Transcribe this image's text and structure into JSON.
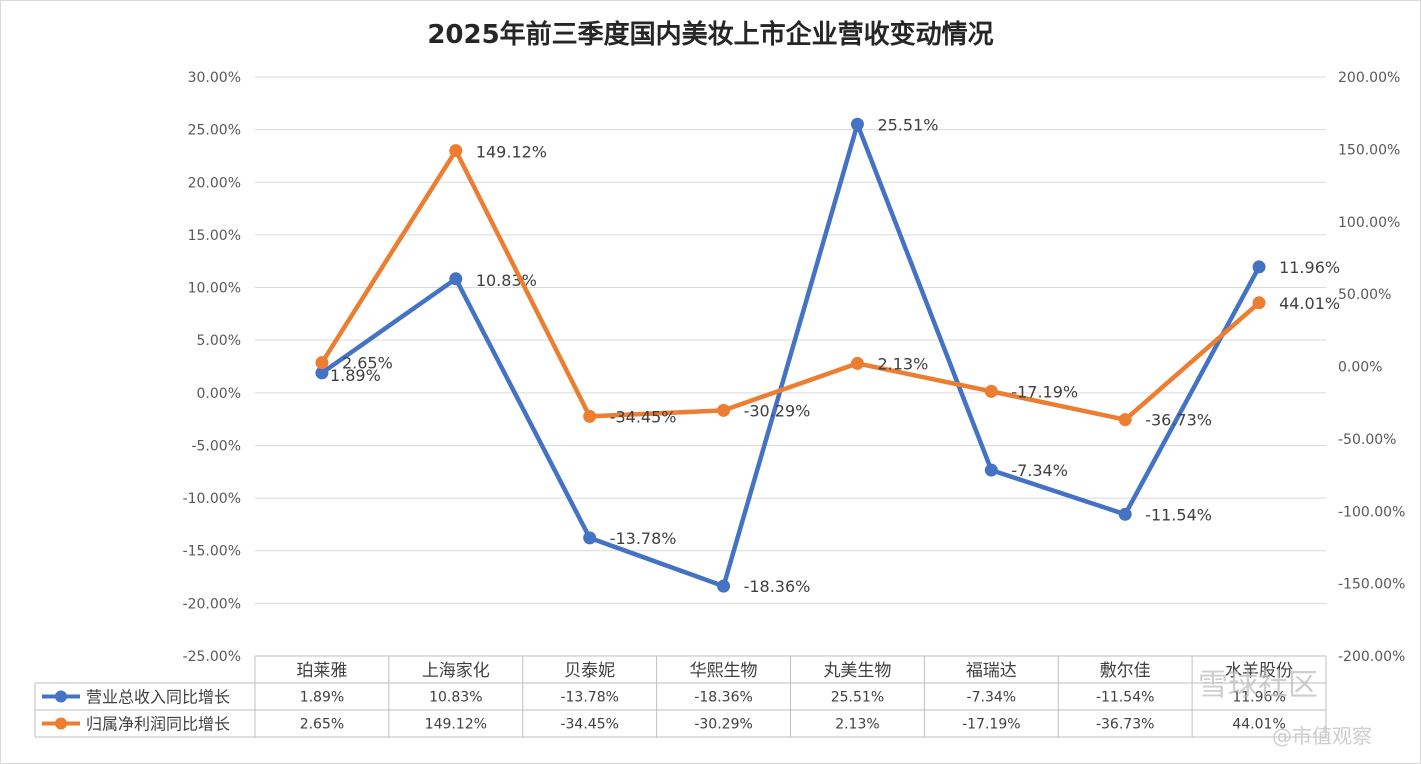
{
  "chart_data": {
    "type": "line",
    "title": "2025年前三季度国内美妆上市企业营收变动情况",
    "categories": [
      "珀莱雅",
      "上海家化",
      "贝泰妮",
      "华熙生物",
      "丸美生物",
      "福瑞达",
      "敷尔佳",
      "水羊股份"
    ],
    "series": [
      {
        "name": "营业总收入同比增长",
        "axis": "left",
        "color": "#4472c4",
        "values": [
          1.89,
          10.83,
          -13.78,
          -18.36,
          25.51,
          -7.34,
          -11.54,
          11.96
        ],
        "labels": [
          "1.89%",
          "10.83%",
          "-13.78%",
          "-18.36%",
          "25.51%",
          "-7.34%",
          "-11.54%",
          "11.96%"
        ]
      },
      {
        "name": "归属净利润同比增长",
        "axis": "right",
        "color": "#ed7d31",
        "values": [
          2.65,
          149.12,
          -34.45,
          -30.29,
          2.13,
          -17.19,
          -36.73,
          44.01
        ],
        "labels": [
          "2.65%",
          "149.12%",
          "-34.45%",
          "-30.29%",
          "2.13%",
          "-17.19%",
          "-36.73%",
          "44.01%"
        ]
      }
    ],
    "y_left": {
      "range": [
        -25,
        30
      ],
      "ticks": [
        "30.00%",
        "25.00%",
        "20.00%",
        "15.00%",
        "10.00%",
        "5.00%",
        "0.00%",
        "-5.00%",
        "-10.00%",
        "-15.00%",
        "-20.00%",
        "-25.00%"
      ]
    },
    "y_right": {
      "range": [
        -200,
        200
      ],
      "ticks": [
        "200.00%",
        "150.00%",
        "100.00%",
        "50.00%",
        "0.00%",
        "-50.00%",
        "-100.00%",
        "-150.00%",
        "-200.00%"
      ]
    },
    "grid": true,
    "data_table": true,
    "legend": "bottom-left (in data table)"
  },
  "watermarks": [
    "雪球社区",
    "@市值观察"
  ]
}
